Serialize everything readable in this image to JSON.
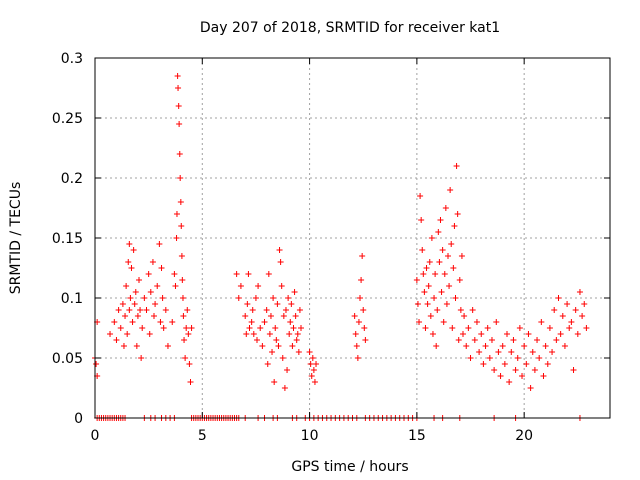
{
  "chart_data": {
    "type": "scatter",
    "title": "Day 207 of 2018, SRMTID for receiver kat1",
    "xlabel": "GPS time / hours",
    "ylabel": "SRMTID / TECUs",
    "xlim": [
      0,
      24
    ],
    "ylim": [
      0,
      0.3
    ],
    "xticks": [
      0,
      5,
      10,
      15,
      20
    ],
    "yticks": [
      0,
      0.05,
      0.1,
      0.15,
      0.2,
      0.25,
      0.3
    ],
    "ytick_labels": [
      "0",
      "0.05",
      "0.1",
      "0.15",
      "0.2",
      "0.25",
      "0.3"
    ],
    "grid": true,
    "marker": "+",
    "color": "#ff0000",
    "series": [
      {
        "name": "SRMTID",
        "points": [
          [
            0.0,
            0.05
          ],
          [
            0.05,
            0.045
          ],
          [
            0.1,
            0.08
          ],
          [
            0.1,
            0.035
          ],
          [
            0.7,
            0.07
          ],
          [
            0.9,
            0.08
          ],
          [
            1.0,
            0.065
          ],
          [
            1.1,
            0.09
          ],
          [
            1.2,
            0.075
          ],
          [
            1.3,
            0.095
          ],
          [
            1.35,
            0.06
          ],
          [
            1.4,
            0.085
          ],
          [
            1.45,
            0.11
          ],
          [
            1.5,
            0.07
          ],
          [
            1.55,
            0.13
          ],
          [
            1.6,
            0.145
          ],
          [
            1.6,
            0.09
          ],
          [
            1.65,
            0.1
          ],
          [
            1.7,
            0.125
          ],
          [
            1.75,
            0.08
          ],
          [
            1.8,
            0.14
          ],
          [
            1.85,
            0.095
          ],
          [
            1.9,
            0.105
          ],
          [
            1.95,
            0.06
          ],
          [
            2.0,
            0.085
          ],
          [
            2.05,
            0.115
          ],
          [
            2.1,
            0.09
          ],
          [
            2.15,
            0.05
          ],
          [
            2.2,
            0.075
          ],
          [
            2.3,
            0.1
          ],
          [
            2.4,
            0.09
          ],
          [
            2.5,
            0.12
          ],
          [
            2.55,
            0.07
          ],
          [
            2.6,
            0.105
          ],
          [
            2.7,
            0.13
          ],
          [
            2.75,
            0.085
          ],
          [
            2.8,
            0.095
          ],
          [
            2.9,
            0.11
          ],
          [
            3.0,
            0.145
          ],
          [
            3.05,
            0.08
          ],
          [
            3.1,
            0.125
          ],
          [
            3.15,
            0.1
          ],
          [
            3.2,
            0.075
          ],
          [
            3.3,
            0.09
          ],
          [
            3.4,
            0.06
          ],
          [
            3.6,
            0.08
          ],
          [
            3.7,
            0.12
          ],
          [
            3.75,
            0.11
          ],
          [
            3.8,
            0.15
          ],
          [
            3.82,
            0.17
          ],
          [
            3.85,
            0.285
          ],
          [
            3.87,
            0.275
          ],
          [
            3.9,
            0.26
          ],
          [
            3.92,
            0.245
          ],
          [
            3.95,
            0.22
          ],
          [
            3.97,
            0.2
          ],
          [
            4.0,
            0.18
          ],
          [
            4.02,
            0.16
          ],
          [
            4.05,
            0.135
          ],
          [
            4.07,
            0.115
          ],
          [
            4.1,
            0.1
          ],
          [
            4.12,
            0.085
          ],
          [
            4.15,
            0.065
          ],
          [
            4.2,
            0.05
          ],
          [
            4.25,
            0.075
          ],
          [
            4.3,
            0.09
          ],
          [
            4.35,
            0.07
          ],
          [
            4.4,
            0.045
          ],
          [
            4.45,
            0.03
          ],
          [
            4.5,
            0.075
          ],
          [
            6.6,
            0.12
          ],
          [
            6.7,
            0.1
          ],
          [
            6.8,
            0.11
          ],
          [
            7.0,
            0.085
          ],
          [
            7.05,
            0.07
          ],
          [
            7.1,
            0.095
          ],
          [
            7.15,
            0.12
          ],
          [
            7.2,
            0.075
          ],
          [
            7.3,
            0.08
          ],
          [
            7.35,
            0.09
          ],
          [
            7.4,
            0.07
          ],
          [
            7.5,
            0.1
          ],
          [
            7.55,
            0.065
          ],
          [
            7.6,
            0.11
          ],
          [
            7.7,
            0.075
          ],
          [
            7.8,
            0.06
          ],
          [
            7.9,
            0.08
          ],
          [
            8.0,
            0.09
          ],
          [
            8.05,
            0.045
          ],
          [
            8.1,
            0.12
          ],
          [
            8.15,
            0.07
          ],
          [
            8.2,
            0.085
          ],
          [
            8.25,
            0.055
          ],
          [
            8.3,
            0.1
          ],
          [
            8.35,
            0.03
          ],
          [
            8.4,
            0.075
          ],
          [
            8.45,
            0.065
          ],
          [
            8.5,
            0.095
          ],
          [
            8.55,
            0.06
          ],
          [
            8.6,
            0.14
          ],
          [
            8.65,
            0.13
          ],
          [
            8.7,
            0.11
          ],
          [
            8.75,
            0.05
          ],
          [
            8.8,
            0.085
          ],
          [
            8.85,
            0.025
          ],
          [
            8.9,
            0.09
          ],
          [
            8.95,
            0.04
          ],
          [
            9.0,
            0.1
          ],
          [
            9.05,
            0.07
          ],
          [
            9.1,
            0.08
          ],
          [
            9.15,
            0.095
          ],
          [
            9.2,
            0.06
          ],
          [
            9.25,
            0.075
          ],
          [
            9.3,
            0.105
          ],
          [
            9.35,
            0.085
          ],
          [
            9.4,
            0.065
          ],
          [
            9.45,
            0.07
          ],
          [
            9.5,
            0.055
          ],
          [
            9.55,
            0.09
          ],
          [
            9.6,
            0.075
          ],
          [
            10.0,
            0.055
          ],
          [
            10.05,
            0.045
          ],
          [
            10.1,
            0.035
          ],
          [
            10.15,
            0.05
          ],
          [
            10.2,
            0.04
          ],
          [
            10.25,
            0.03
          ],
          [
            10.3,
            0.045
          ],
          [
            12.1,
            0.085
          ],
          [
            12.15,
            0.07
          ],
          [
            12.2,
            0.06
          ],
          [
            12.25,
            0.05
          ],
          [
            12.3,
            0.08
          ],
          [
            12.35,
            0.1
          ],
          [
            12.4,
            0.115
          ],
          [
            12.45,
            0.135
          ],
          [
            12.5,
            0.09
          ],
          [
            12.55,
            0.075
          ],
          [
            12.6,
            0.065
          ],
          [
            15.0,
            0.115
          ],
          [
            15.05,
            0.095
          ],
          [
            15.1,
            0.08
          ],
          [
            15.15,
            0.185
          ],
          [
            15.2,
            0.165
          ],
          [
            15.25,
            0.14
          ],
          [
            15.3,
            0.12
          ],
          [
            15.35,
            0.105
          ],
          [
            15.4,
            0.075
          ],
          [
            15.45,
            0.125
          ],
          [
            15.5,
            0.095
          ],
          [
            15.55,
            0.11
          ],
          [
            15.6,
            0.13
          ],
          [
            15.65,
            0.085
          ],
          [
            15.7,
            0.15
          ],
          [
            15.75,
            0.07
          ],
          [
            15.8,
            0.1
          ],
          [
            15.85,
            0.12
          ],
          [
            15.9,
            0.06
          ],
          [
            15.95,
            0.09
          ],
          [
            16.0,
            0.155
          ],
          [
            16.05,
            0.13
          ],
          [
            16.1,
            0.165
          ],
          [
            16.15,
            0.105
          ],
          [
            16.2,
            0.14
          ],
          [
            16.25,
            0.08
          ],
          [
            16.3,
            0.12
          ],
          [
            16.35,
            0.175
          ],
          [
            16.4,
            0.095
          ],
          [
            16.45,
            0.135
          ],
          [
            16.5,
            0.11
          ],
          [
            16.55,
            0.19
          ],
          [
            16.6,
            0.145
          ],
          [
            16.65,
            0.075
          ],
          [
            16.7,
            0.125
          ],
          [
            16.75,
            0.16
          ],
          [
            16.8,
            0.1
          ],
          [
            16.85,
            0.21
          ],
          [
            16.9,
            0.17
          ],
          [
            16.95,
            0.065
          ],
          [
            17.0,
            0.115
          ],
          [
            17.05,
            0.09
          ],
          [
            17.1,
            0.135
          ],
          [
            17.15,
            0.07
          ],
          [
            17.2,
            0.085
          ],
          [
            17.3,
            0.06
          ],
          [
            17.4,
            0.075
          ],
          [
            17.5,
            0.05
          ],
          [
            17.6,
            0.09
          ],
          [
            17.7,
            0.065
          ],
          [
            17.8,
            0.08
          ],
          [
            17.9,
            0.055
          ],
          [
            18.0,
            0.07
          ],
          [
            18.1,
            0.045
          ],
          [
            18.2,
            0.06
          ],
          [
            18.3,
            0.075
          ],
          [
            18.4,
            0.05
          ],
          [
            18.5,
            0.065
          ],
          [
            18.6,
            0.04
          ],
          [
            18.7,
            0.08
          ],
          [
            18.8,
            0.055
          ],
          [
            18.9,
            0.035
          ],
          [
            19.0,
            0.06
          ],
          [
            19.1,
            0.045
          ],
          [
            19.2,
            0.07
          ],
          [
            19.3,
            0.03
          ],
          [
            19.4,
            0.055
          ],
          [
            19.5,
            0.065
          ],
          [
            19.6,
            0.04
          ],
          [
            19.7,
            0.05
          ],
          [
            19.8,
            0.075
          ],
          [
            19.9,
            0.035
          ],
          [
            20.0,
            0.06
          ],
          [
            20.1,
            0.045
          ],
          [
            20.2,
            0.07
          ],
          [
            20.3,
            0.025
          ],
          [
            20.4,
            0.055
          ],
          [
            20.5,
            0.04
          ],
          [
            20.6,
            0.065
          ],
          [
            20.7,
            0.05
          ],
          [
            20.8,
            0.08
          ],
          [
            20.9,
            0.035
          ],
          [
            21.0,
            0.06
          ],
          [
            21.1,
            0.045
          ],
          [
            21.2,
            0.075
          ],
          [
            21.3,
            0.055
          ],
          [
            21.4,
            0.09
          ],
          [
            21.5,
            0.065
          ],
          [
            21.6,
            0.1
          ],
          [
            21.7,
            0.07
          ],
          [
            21.8,
            0.085
          ],
          [
            21.9,
            0.06
          ],
          [
            22.0,
            0.095
          ],
          [
            22.1,
            0.075
          ],
          [
            22.2,
            0.08
          ],
          [
            22.3,
            0.04
          ],
          [
            22.4,
            0.09
          ],
          [
            22.5,
            0.07
          ],
          [
            22.6,
            0.105
          ],
          [
            22.7,
            0.085
          ],
          [
            22.8,
            0.095
          ],
          [
            22.9,
            0.075
          ]
        ],
        "zero_points_x": [
          0.1,
          0.2,
          0.3,
          0.4,
          0.5,
          0.6,
          0.7,
          0.8,
          0.9,
          1.0,
          1.1,
          1.2,
          1.3,
          1.4,
          2.3,
          2.6,
          2.8,
          3.1,
          3.3,
          3.5,
          3.7,
          4.5,
          4.6,
          4.7,
          4.8,
          4.9,
          5.0,
          5.1,
          5.2,
          5.3,
          5.4,
          5.5,
          5.6,
          5.7,
          5.8,
          5.9,
          6.0,
          6.1,
          6.2,
          6.3,
          6.4,
          6.5,
          6.6,
          6.7,
          7.0,
          7.6,
          7.9,
          8.3,
          8.5,
          9.2,
          9.4,
          9.8,
          10.0,
          10.2,
          10.4,
          10.6,
          10.8,
          11.0,
          11.2,
          11.4,
          11.6,
          11.8,
          12.0,
          12.2,
          12.6,
          12.8,
          13.0,
          13.2,
          13.4,
          13.6,
          13.8,
          14.0,
          14.2,
          14.4,
          14.6,
          14.8,
          15.0,
          15.8,
          16.2,
          17.0,
          18.6,
          19.6,
          22.6
        ]
      }
    ]
  }
}
